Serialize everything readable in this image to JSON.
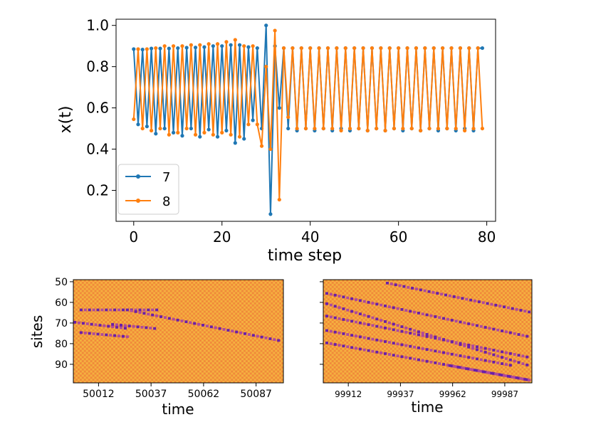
{
  "colors": {
    "series_7": "#1f77b4",
    "series_8": "#ff7f0e",
    "heat_background": "#f08a3a",
    "heat_alt": "#f5b040",
    "heat_defect": "#6a1fa8"
  },
  "chart_data": [
    {
      "type": "line",
      "title": "",
      "xlabel": "time step",
      "ylabel": "x(t)",
      "xlim": [
        -4,
        82
      ],
      "ylim": [
        0.05,
        1.03
      ],
      "xticks": [
        "0",
        "20",
        "40",
        "60",
        "80"
      ],
      "yticks": [
        "0.2",
        "0.4",
        "0.6",
        "0.8",
        "1.0"
      ],
      "legend": {
        "placement": "lower-left",
        "labels": [
          "7",
          "8"
        ]
      },
      "x": [
        0,
        1,
        2,
        3,
        4,
        5,
        6,
        7,
        8,
        9,
        10,
        11,
        12,
        13,
        14,
        15,
        16,
        17,
        18,
        19,
        20,
        21,
        22,
        23,
        24,
        25,
        26,
        27,
        28,
        29,
        30,
        31,
        32,
        33,
        34,
        35,
        36,
        37,
        38,
        39,
        40,
        41,
        42,
        43,
        44,
        45,
        46,
        47,
        48,
        49,
        50,
        51,
        52,
        53,
        54,
        55,
        56,
        57,
        58,
        59,
        60,
        61,
        62,
        63,
        64,
        65,
        66,
        67,
        68,
        69,
        70,
        71,
        72,
        73,
        74,
        75,
        76,
        77,
        78,
        79
      ],
      "series": [
        {
          "name": "7",
          "values": [
            0.885,
            0.52,
            0.883,
            0.51,
            0.888,
            0.475,
            0.888,
            0.5,
            0.888,
            0.48,
            0.89,
            0.465,
            0.892,
            0.5,
            0.893,
            0.46,
            0.895,
            0.495,
            0.9,
            0.46,
            0.9,
            0.49,
            0.905,
            0.43,
            0.905,
            0.45,
            0.895,
            0.54,
            0.89,
            0.5,
            1.0,
            0.085,
            0.9,
            0.6,
            0.89,
            0.5,
            0.89,
            0.49,
            0.89,
            0.5,
            0.89,
            0.49,
            0.89,
            0.5,
            0.89,
            0.49,
            0.89,
            0.5,
            0.89,
            0.49,
            0.89,
            0.5,
            0.89,
            0.49,
            0.89,
            0.5,
            0.89,
            0.49,
            0.89,
            0.5,
            0.89,
            0.49,
            0.89,
            0.5,
            0.89,
            0.49,
            0.89,
            0.5,
            0.89,
            0.49,
            0.89,
            0.5,
            0.89,
            0.49,
            0.89,
            0.5,
            0.89,
            0.49,
            0.89,
            0.89
          ]
        },
        {
          "name": "8",
          "values": [
            0.545,
            0.885,
            0.5,
            0.885,
            0.49,
            0.89,
            0.5,
            0.9,
            0.47,
            0.9,
            0.48,
            0.9,
            0.5,
            0.905,
            0.47,
            0.905,
            0.48,
            0.91,
            0.47,
            0.91,
            0.48,
            0.92,
            0.47,
            0.93,
            0.46,
            0.9,
            0.52,
            0.9,
            0.52,
            0.415,
            0.8,
            0.4,
            0.975,
            0.155,
            0.89,
            0.555,
            0.89,
            0.5,
            0.89,
            0.5,
            0.89,
            0.5,
            0.89,
            0.5,
            0.89,
            0.5,
            0.89,
            0.49,
            0.89,
            0.5,
            0.89,
            0.5,
            0.89,
            0.49,
            0.89,
            0.5,
            0.89,
            0.49,
            0.89,
            0.5,
            0.89,
            0.5,
            0.89,
            0.5,
            0.89,
            0.49,
            0.89,
            0.5,
            0.89,
            0.5,
            0.89,
            0.5,
            0.89,
            0.5,
            0.89,
            0.49,
            0.89,
            0.5,
            0.89,
            0.5
          ]
        }
      ]
    },
    {
      "type": "heatmap",
      "title": "",
      "xlabel": "time",
      "ylabel": "sites",
      "t_range": [
        50000,
        50100
      ],
      "site_range": [
        49,
        99
      ],
      "xticks": [
        "50012",
        "50037",
        "50062",
        "50087"
      ],
      "yticks": [
        "50",
        "60",
        "70",
        "80",
        "90"
      ],
      "defect_tracks": [
        {
          "t0": 50003,
          "t1": 50040,
          "s0": 63,
          "s1": 63
        },
        {
          "t0": 50025,
          "t1": 50098,
          "s0": 63,
          "s1": 78
        },
        {
          "t0": 50000,
          "t1": 50025,
          "s0": 69,
          "s1": 72
        },
        {
          "t0": 50003,
          "t1": 50025,
          "s0": 74,
          "s1": 76
        },
        {
          "t0": 50018,
          "t1": 50038,
          "s0": 70,
          "s1": 72
        }
      ]
    },
    {
      "type": "heatmap",
      "title": "",
      "xlabel": "time",
      "ylabel": "",
      "t_range": [
        99900,
        100000
      ],
      "site_range": [
        49,
        99
      ],
      "xticks": [
        "99912",
        "99937",
        "99962",
        "99987"
      ],
      "yticks": [],
      "defect_tracks": [
        {
          "t0": 99901,
          "t1": 99998,
          "s0": 55,
          "s1": 76
        },
        {
          "t0": 99901,
          "t1": 99998,
          "s0": 60,
          "s1": 90
        },
        {
          "t0": 99901,
          "t1": 99998,
          "s0": 66,
          "s1": 86
        },
        {
          "t0": 99901,
          "t1": 99990,
          "s0": 73,
          "s1": 90
        },
        {
          "t0": 99901,
          "t1": 99998,
          "s0": 79,
          "s1": 97
        },
        {
          "t0": 99930,
          "t1": 99998,
          "s0": 50,
          "s1": 64
        },
        {
          "t0": 99960,
          "t1": 99998,
          "s0": 90,
          "s1": 97
        }
      ]
    }
  ]
}
